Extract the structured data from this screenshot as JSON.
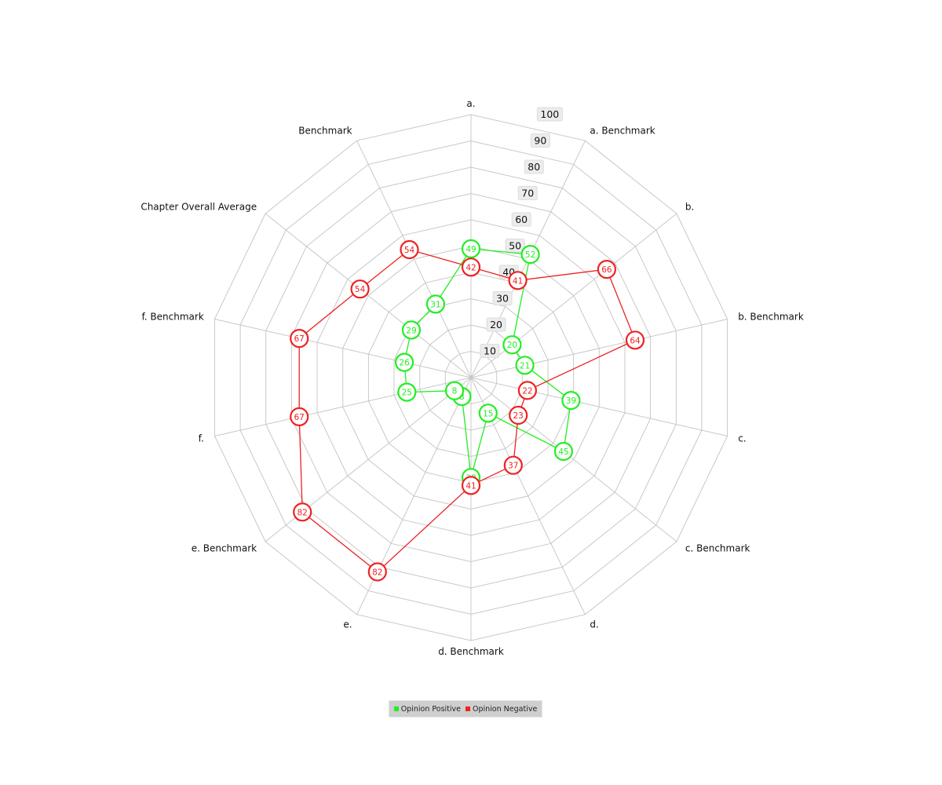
{
  "chart_data": {
    "type": "radar",
    "categories": [
      "a.",
      "a. Benchmark",
      "b.",
      "b. Benchmark",
      "c.",
      "c. Benchmark",
      "d.",
      "d. Benchmark",
      "e.",
      "e. Benchmark",
      "f.",
      "f. Benchmark",
      "Chapter Overall Average",
      "Benchmark"
    ],
    "ticks": [
      "10",
      "20",
      "30",
      "40",
      "50",
      "60",
      "70",
      "80",
      "90",
      "100"
    ],
    "rmax": 100,
    "series": [
      {
        "name": "Opinion Positive",
        "color": "#22ee22",
        "values": [
          49,
          52,
          20,
          21,
          39,
          45,
          15,
          38,
          8,
          8,
          25,
          26,
          29,
          31
        ]
      },
      {
        "name": "Opinion Negative",
        "color": "#ee2222",
        "values": [
          42,
          41,
          66,
          64,
          22,
          23,
          37,
          41,
          82,
          82,
          67,
          67,
          54,
          54
        ]
      }
    ]
  }
}
